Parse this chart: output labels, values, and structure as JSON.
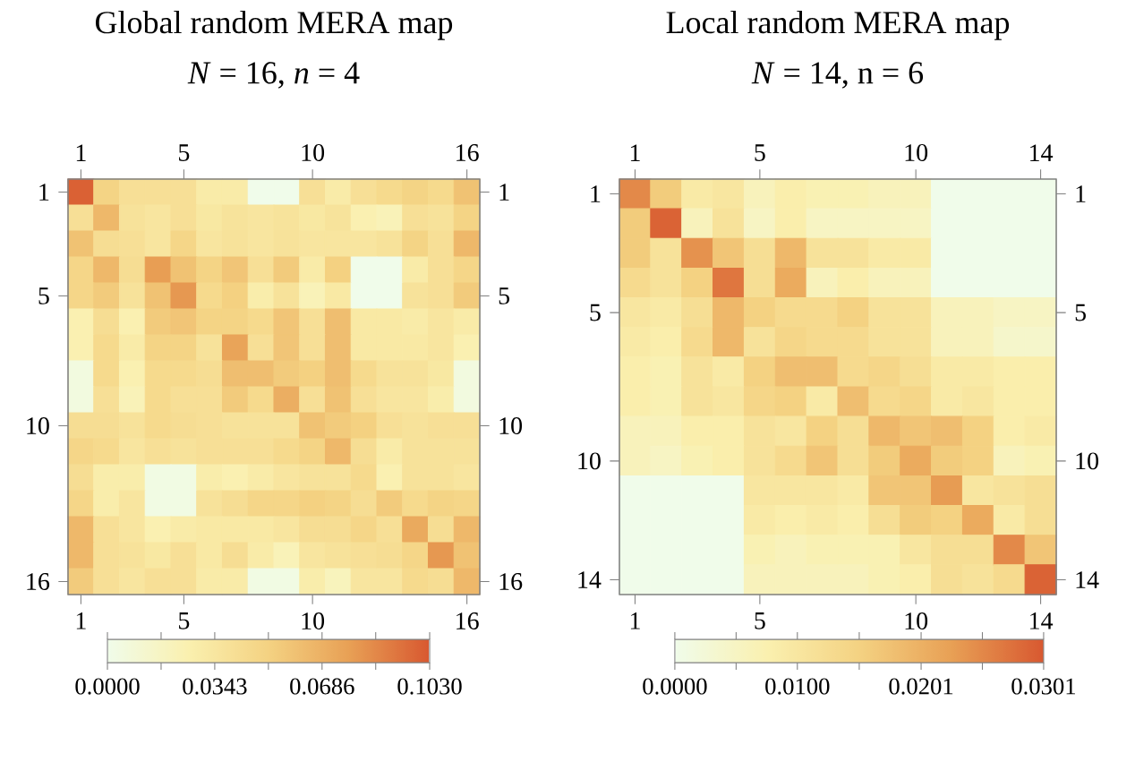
{
  "chart_data": [
    {
      "type": "heatmap",
      "title": "Global random MERA map",
      "subtitle": "*N* = 16,  *n* = 4",
      "categories": [
        "1",
        null,
        null,
        null,
        "5",
        null,
        null,
        null,
        null,
        "10",
        null,
        null,
        null,
        null,
        null,
        "16"
      ],
      "y_categories": [
        "1",
        null,
        null,
        null,
        "5",
        null,
        null,
        null,
        null,
        "10",
        null,
        null,
        null,
        null,
        null,
        "16"
      ],
      "y2_categories": [
        "1",
        null,
        null,
        null,
        "5",
        null,
        null,
        null,
        null,
        "10",
        null,
        null,
        null,
        null,
        null,
        "16"
      ],
      "cells": [
        [
          0.1,
          0.05,
          0.04,
          0.04,
          0.04,
          0.03,
          0.03,
          0,
          0,
          0.04,
          0.03,
          0.04,
          0.045,
          0.05,
          0.045,
          0.06
        ],
        [
          0.04,
          0.065,
          0.038,
          0.035,
          0.04,
          0.033,
          0.037,
          0.035,
          0.037,
          0.033,
          0.037,
          0.025,
          0.022,
          0.04,
          0.038,
          0.05
        ],
        [
          0.06,
          0.042,
          0.04,
          0.035,
          0.048,
          0.035,
          0.038,
          0.035,
          0.038,
          0.035,
          0.035,
          0.035,
          0.038,
          0.05,
          0.04,
          0.065
        ],
        [
          0.048,
          0.065,
          0.042,
          0.078,
          0.06,
          0.05,
          0.058,
          0.04,
          0.055,
          0.03,
          0.052,
          0,
          0,
          0.03,
          0.04,
          0.048
        ],
        [
          0.048,
          0.055,
          0.038,
          0.06,
          0.08,
          0.045,
          0.052,
          0.028,
          0.038,
          0.022,
          0.032,
          0,
          0,
          0.038,
          0.04,
          0.055
        ],
        [
          0.025,
          0.042,
          0.025,
          0.055,
          0.058,
          0.05,
          0.05,
          0.045,
          0.058,
          0.04,
          0.062,
          0.032,
          0.032,
          0.03,
          0.035,
          0.03
        ],
        [
          0.025,
          0.045,
          0.03,
          0.05,
          0.05,
          0.038,
          0.075,
          0.04,
          0.058,
          0.04,
          0.062,
          0.032,
          0.032,
          0.032,
          0.035,
          0.025
        ],
        [
          0.005,
          0.045,
          0.025,
          0.045,
          0.045,
          0.042,
          0.062,
          0.062,
          0.055,
          0.052,
          0.062,
          0.045,
          0.038,
          0.038,
          0.033,
          0.005
        ],
        [
          0.005,
          0.04,
          0.022,
          0.045,
          0.04,
          0.04,
          0.055,
          0.045,
          0.07,
          0.04,
          0.06,
          0.04,
          0.035,
          0.035,
          0.028,
          0.005
        ],
        [
          0.042,
          0.042,
          0.038,
          0.045,
          0.042,
          0.04,
          0.038,
          0.038,
          0.038,
          0.06,
          0.055,
          0.052,
          0.04,
          0.038,
          0.04,
          0.04
        ],
        [
          0.048,
          0.045,
          0.035,
          0.04,
          0.038,
          0.04,
          0.04,
          0.04,
          0.045,
          0.05,
          0.065,
          0.042,
          0.03,
          0.038,
          0.038,
          0.038
        ],
        [
          0.042,
          0.028,
          0.028,
          0.003,
          0.003,
          0.028,
          0.025,
          0.03,
          0.035,
          0.038,
          0.038,
          0.045,
          0.025,
          0.038,
          0.038,
          0.035
        ],
        [
          0.048,
          0.028,
          0.035,
          0.003,
          0.003,
          0.038,
          0.042,
          0.048,
          0.048,
          0.052,
          0.05,
          0.042,
          0.055,
          0.045,
          0.05,
          0.048
        ],
        [
          0.065,
          0.04,
          0.035,
          0.025,
          0.03,
          0.032,
          0.032,
          0.032,
          0.035,
          0.042,
          0.042,
          0.048,
          0.04,
          0.072,
          0.042,
          0.065
        ],
        [
          0.065,
          0.04,
          0.038,
          0.033,
          0.04,
          0.032,
          0.042,
          0.03,
          0.022,
          0.035,
          0.038,
          0.04,
          0.042,
          0.048,
          0.08,
          0.06
        ],
        [
          0.055,
          0.04,
          0.035,
          0.04,
          0.04,
          0.03,
          0.03,
          0.003,
          0.003,
          0.028,
          0.02,
          0.035,
          0.035,
          0.045,
          0.042,
          0.065
        ]
      ],
      "clim": [
        0,
        0.103
      ],
      "cticks": [
        {
          "value": 0,
          "label": "0.0000"
        },
        {
          "value": 0.01715,
          "label": null
        },
        {
          "value": 0.0343,
          "label": "0.0343"
        },
        {
          "value": 0.05145,
          "label": null
        },
        {
          "value": 0.0686,
          "label": "0.0686"
        },
        {
          "value": 0.08575,
          "label": null
        },
        {
          "value": 0.103,
          "label": "0.1030"
        }
      ]
    },
    {
      "type": "heatmap",
      "title": "Local random MERA map",
      "subtitle": "*N* = 14,  n = 6",
      "categories": [
        "1",
        null,
        null,
        null,
        "5",
        null,
        null,
        null,
        null,
        "10",
        null,
        null,
        null,
        "14"
      ],
      "y_categories": [
        "1",
        null,
        null,
        null,
        "5",
        null,
        null,
        null,
        null,
        "10",
        null,
        null,
        null,
        "14"
      ],
      "y2_categories": [
        "1",
        null,
        null,
        null,
        "5",
        null,
        null,
        null,
        null,
        "10",
        null,
        null,
        null,
        "14"
      ],
      "cells": [
        [
          0.025,
          0.016,
          0.009,
          0.01,
          0.006,
          0.008,
          0.007,
          0.007,
          0.006,
          0.006,
          0,
          0,
          0,
          0
        ],
        [
          0.016,
          0.029,
          0.006,
          0.011,
          0.005,
          0.008,
          0.005,
          0.005,
          0.005,
          0.005,
          0,
          0,
          0,
          0
        ],
        [
          0.016,
          0.011,
          0.024,
          0.017,
          0.012,
          0.019,
          0.011,
          0.011,
          0.009,
          0.009,
          0,
          0,
          0,
          0
        ],
        [
          0.013,
          0.011,
          0.015,
          0.027,
          0.012,
          0.021,
          0.006,
          0.008,
          0.006,
          0.006,
          0,
          0,
          0,
          0
        ],
        [
          0.01,
          0.009,
          0.012,
          0.019,
          0.015,
          0.013,
          0.013,
          0.015,
          0.011,
          0.011,
          0.006,
          0.006,
          0.005,
          0.005
        ],
        [
          0.009,
          0.008,
          0.013,
          0.019,
          0.011,
          0.014,
          0.013,
          0.013,
          0.011,
          0.011,
          0.006,
          0.006,
          0.004,
          0.004
        ],
        [
          0.008,
          0.007,
          0.011,
          0.009,
          0.015,
          0.018,
          0.018,
          0.013,
          0.014,
          0.012,
          0.009,
          0.009,
          0.008,
          0.008
        ],
        [
          0.008,
          0.007,
          0.011,
          0.01,
          0.014,
          0.015,
          0.009,
          0.018,
          0.013,
          0.014,
          0.009,
          0.01,
          0.008,
          0.008
        ],
        [
          0.006,
          0.006,
          0.008,
          0.008,
          0.011,
          0.01,
          0.015,
          0.012,
          0.019,
          0.017,
          0.018,
          0.015,
          0.008,
          0.009
        ],
        [
          0.006,
          0.005,
          0.007,
          0.008,
          0.011,
          0.013,
          0.017,
          0.012,
          0.016,
          0.021,
          0.016,
          0.015,
          0.006,
          0.007
        ],
        [
          0,
          0,
          0,
          0,
          0.01,
          0.01,
          0.01,
          0.009,
          0.017,
          0.017,
          0.023,
          0.01,
          0.011,
          0.012
        ],
        [
          0,
          0,
          0,
          0,
          0.009,
          0.008,
          0.009,
          0.008,
          0.012,
          0.016,
          0.015,
          0.021,
          0.009,
          0.012
        ],
        [
          0,
          0,
          0,
          0,
          0.007,
          0.006,
          0.007,
          0.007,
          0.007,
          0.01,
          0.012,
          0.012,
          0.025,
          0.017
        ],
        [
          0,
          0,
          0,
          0,
          0.006,
          0.006,
          0.006,
          0.006,
          0.007,
          0.008,
          0.012,
          0.011,
          0.013,
          0.029
        ]
      ],
      "clim": [
        0,
        0.0301
      ],
      "cticks": [
        {
          "value": 0,
          "label": "0.0000"
        },
        {
          "value": 0.005,
          "label": null
        },
        {
          "value": 0.01,
          "label": "0.0100"
        },
        {
          "value": 0.01505,
          "label": null
        },
        {
          "value": 0.0201,
          "label": "0.0201"
        },
        {
          "value": 0.0251,
          "label": null
        },
        {
          "value": 0.0301,
          "label": "0.0301"
        }
      ]
    }
  ]
}
